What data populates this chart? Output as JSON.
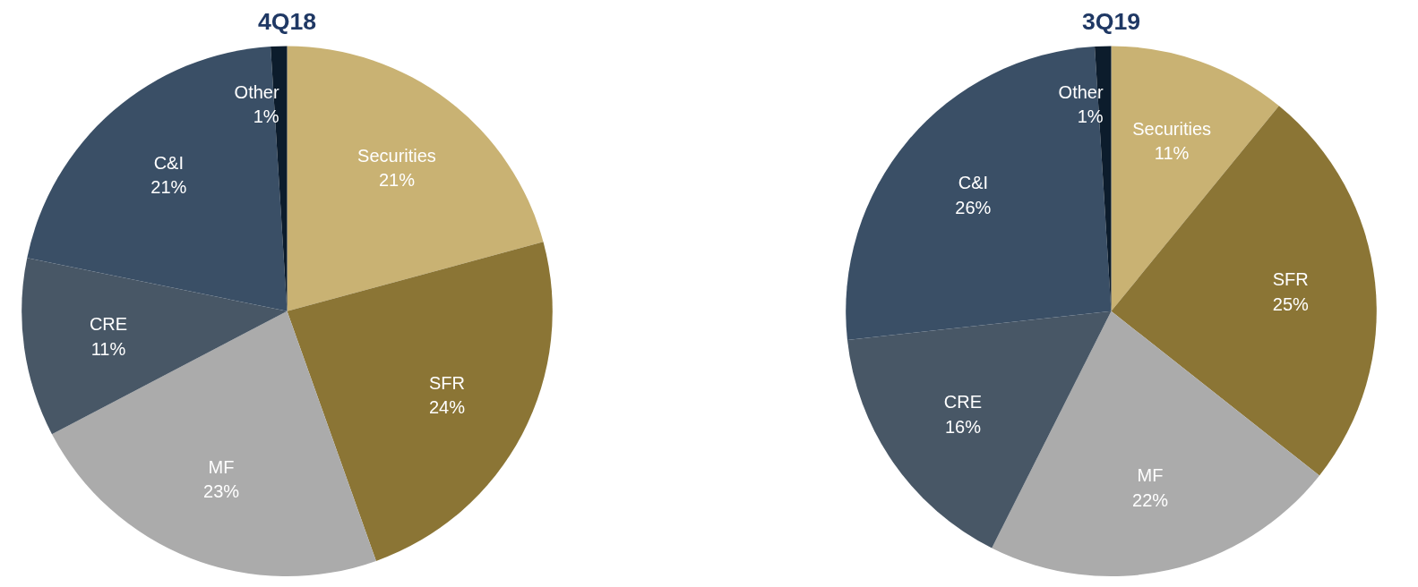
{
  "chart_data": [
    {
      "type": "pie",
      "title": "4Q18",
      "categories": [
        "Securities",
        "SFR",
        "MF",
        "CRE",
        "C&I",
        "Other"
      ],
      "values": [
        21,
        24,
        23,
        11,
        21,
        1
      ],
      "value_labels": [
        "21%",
        "24%",
        "23%",
        "11%",
        "21%",
        "1%"
      ],
      "colors": [
        "#c9b273",
        "#8b7535",
        "#ababab",
        "#485766",
        "#3a4f66",
        "#0c1c2c"
      ]
    },
    {
      "type": "pie",
      "title": "3Q19",
      "categories": [
        "Securities",
        "SFR",
        "MF",
        "CRE",
        "C&I",
        "Other"
      ],
      "values": [
        11,
        25,
        22,
        16,
        26,
        1
      ],
      "value_labels": [
        "11%",
        "25%",
        "22%",
        "16%",
        "26%",
        "1%"
      ],
      "colors": [
        "#c9b273",
        "#8b7535",
        "#ababab",
        "#485766",
        "#3a4f66",
        "#0c1c2c"
      ]
    }
  ]
}
